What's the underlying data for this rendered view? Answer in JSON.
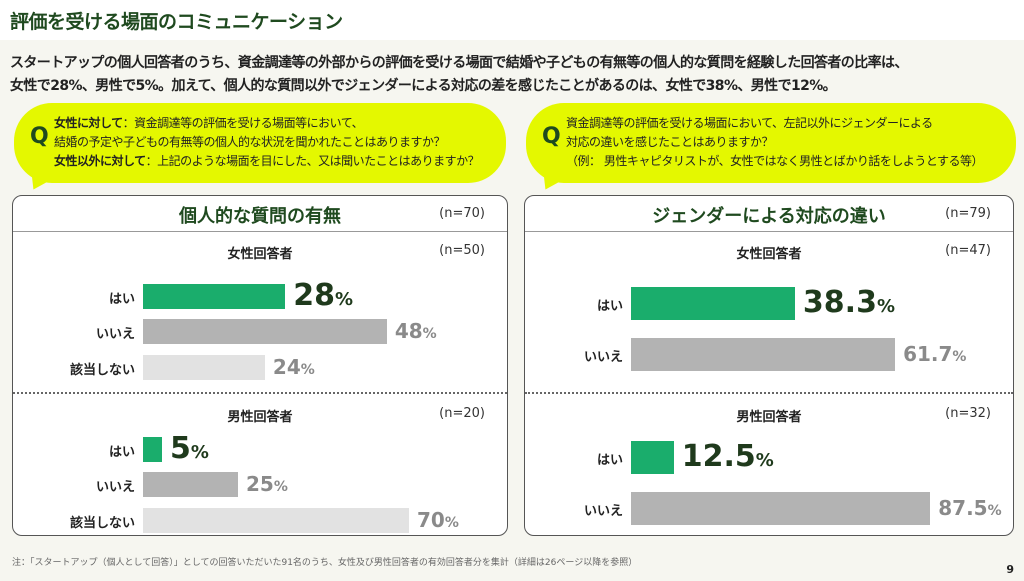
{
  "title": "評価を受ける場面のコミュニケーション",
  "summary": [
    "スタートアップの個人回答者のうち、資金調達等の外部からの評価を受ける場面で結婚や子どもの有無等の個人的な質問を経験した回答者の比率は、",
    "女性で28%、男性で5%。加えて、個人的な質問以外でジェンダーによる対応の差を感じたことがあるのは、女性で38%、男性で12%。"
  ],
  "q_mark": "Q",
  "question_left": {
    "l1_head": "女性に対して",
    "l1": "：資金調達等の評価を受ける場面等において、",
    "l2": "結婚の予定や子どもの有無等の個人的な状況を聞かれたことはありますか？",
    "l3_head": "女性以外に対して",
    "l3": "：上記のような場面を目にした、又は聞いたことはありますか？"
  },
  "question_right": {
    "l1": "資金調達等の評価を受ける場面において、左記以外にジェンダーによる",
    "l2": "対応の違いを感じたことはありますか？",
    "l3": "（例： 男性キャピタリストが、女性ではなく男性とばかり話をしようとする等）"
  },
  "colors": {
    "highlight": "#1aad6c",
    "gray": "#b3b3b3",
    "light": "#e2e2e2",
    "highlight_text": "#1f3a1c",
    "gray_text": "#8a8a8a"
  },
  "chart_data": [
    {
      "type": "bar",
      "title": "個人的な質問の有無",
      "n": "(n=70)",
      "groups": [
        {
          "title": "女性回答者",
          "n": "(n=50)",
          "categories": [
            "はい",
            "いいえ",
            "該当しない"
          ],
          "values": [
            28,
            48,
            24
          ],
          "labels": [
            "28",
            "48",
            "24"
          ]
        },
        {
          "title": "男性回答者",
          "n": "(n=20)",
          "categories": [
            "はい",
            "いいえ",
            "該当しない"
          ],
          "values": [
            5,
            25,
            70
          ],
          "labels": [
            "5",
            "25",
            "70"
          ]
        }
      ]
    },
    {
      "type": "bar",
      "title": "ジェンダーによる対応の違い",
      "n": "(n=79)",
      "groups": [
        {
          "title": "女性回答者",
          "n": "(n=47)",
          "categories": [
            "はい",
            "いいえ"
          ],
          "values": [
            38.3,
            61.7
          ],
          "labels": [
            "38.3",
            "61.7"
          ]
        },
        {
          "title": "男性回答者",
          "n": "(n=32)",
          "categories": [
            "はい",
            "いいえ"
          ],
          "values": [
            12.5,
            87.5
          ],
          "labels": [
            "12.5",
            "87.5"
          ]
        }
      ]
    }
  ],
  "percent": "%",
  "footnote": "注：「スタートアップ（個人として回答）」としての回答いただいた91名のうち、女性及び男性回答者の有効回答者分を集計（詳細は26ページ以降を参照）",
  "page": "9"
}
